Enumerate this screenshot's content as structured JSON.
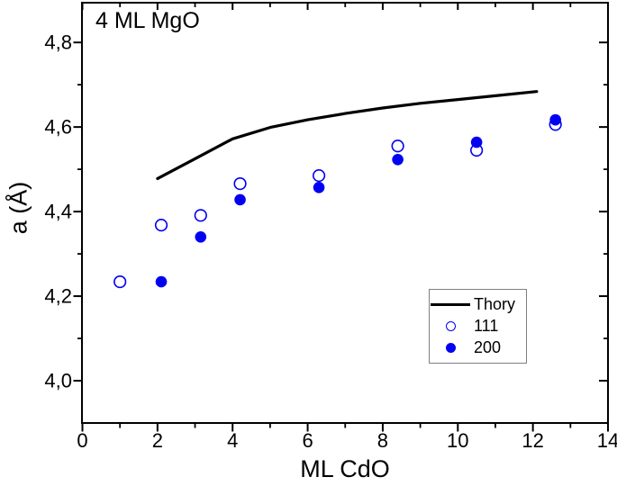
{
  "chart_data": {
    "type": "line+scatter",
    "annotation": "4 ML MgO",
    "xlabel": "ML CdO",
    "ylabel": "a (Å)",
    "xlim": [
      0,
      14
    ],
    "ylim": [
      3.9,
      4.894
    ],
    "grid": false,
    "x_major_ticks": [
      0,
      2,
      4,
      6,
      8,
      10,
      12,
      14
    ],
    "x_tick_labels": [
      "0",
      "2",
      "4",
      "6",
      "8",
      "10",
      "12",
      "14"
    ],
    "x_minor_ticks": [
      1,
      3,
      5,
      7,
      9,
      11,
      13
    ],
    "y_major_ticks": [
      4.0,
      4.2,
      4.4,
      4.6,
      4.8
    ],
    "y_tick_labels": [
      "4,0",
      "4,2",
      "4,4",
      "4,6",
      "4,8"
    ],
    "y_minor_ticks": [
      4.1,
      4.3,
      4.5,
      4.7
    ],
    "colors": {
      "theory_line": "#000000",
      "data_blue": "#0000f2",
      "legend_border": "#7f7f7f"
    },
    "series": [
      {
        "name": "Thory",
        "type": "line",
        "color": "#000000",
        "x": [
          2.0,
          3.0,
          4.0,
          5.0,
          6.0,
          7.0,
          8.0,
          9.0,
          10.0,
          11.0,
          12.1
        ],
        "y": [
          4.478,
          4.525,
          4.572,
          4.599,
          4.617,
          4.632,
          4.645,
          4.656,
          4.665,
          4.674,
          4.684
        ]
      },
      {
        "name": "111",
        "type": "scatter",
        "marker": "open-circle",
        "color": "#0000f2",
        "x": [
          1.0,
          2.1,
          3.15,
          4.2,
          6.3,
          8.4,
          10.5,
          12.6
        ],
        "y": [
          4.234,
          4.368,
          4.391,
          4.466,
          4.485,
          4.555,
          4.545,
          4.606
        ]
      },
      {
        "name": "200",
        "type": "scatter",
        "marker": "filled-circle",
        "color": "#0000f2",
        "x": [
          2.1,
          3.15,
          4.2,
          6.3,
          8.4,
          10.5,
          12.6
        ],
        "y": [
          4.234,
          4.34,
          4.428,
          4.457,
          4.523,
          4.564,
          4.617
        ]
      }
    ],
    "legend_position": "bottom-right"
  },
  "legend": {
    "entries": [
      {
        "label": "Thory",
        "swatch": "line"
      },
      {
        "label": "111",
        "swatch": "open-circle"
      },
      {
        "label": "200",
        "swatch": "filled-circle"
      }
    ]
  }
}
